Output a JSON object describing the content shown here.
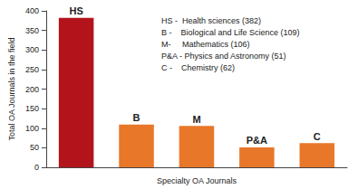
{
  "chart_data": {
    "type": "bar",
    "categories": [
      "HS",
      "B",
      "M",
      "P&A",
      "C"
    ],
    "values": [
      382,
      109,
      106,
      51,
      62
    ],
    "colors": [
      "#b3141c",
      "#e8772a",
      "#e8772a",
      "#e8772a",
      "#e8772a"
    ],
    "xlabel": "Specialty OA Journals",
    "ylabel": "Total OA Journals in the field",
    "ylim": [
      0,
      400
    ],
    "yticks": [
      0,
      50,
      100,
      150,
      200,
      250,
      300,
      350,
      400
    ],
    "grid": false,
    "tick_labels": "y",
    "annotations": [
      "HS -  Health sciences (382)",
      "B -    Biological and Life Science (109)",
      "M-     Mathematics (106)",
      "P&A - Physics and Astronomy (51)",
      "C -    Chemistry (62)"
    ]
  }
}
